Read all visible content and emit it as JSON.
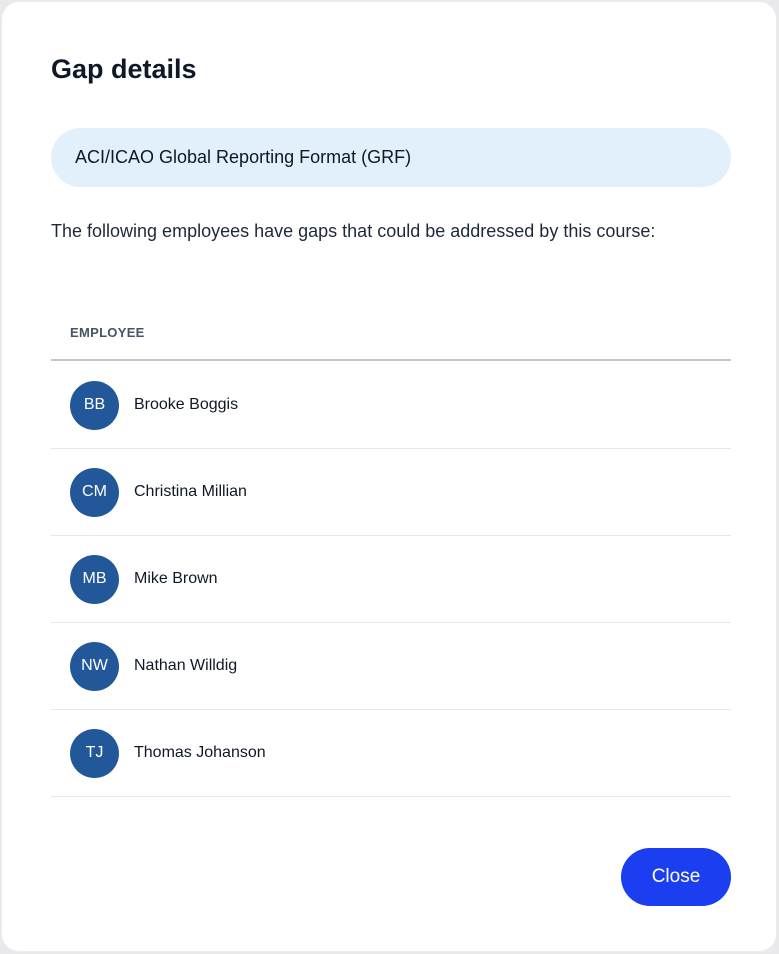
{
  "dialog": {
    "title": "Gap details",
    "course_name": "ACI/ICAO Global Reporting Format (GRF)",
    "description": "The following employees have gaps that could be addressed by this course:",
    "table": {
      "column_header": "EMPLOYEE",
      "rows": [
        {
          "initials": "BB",
          "name": "Brooke Boggis"
        },
        {
          "initials": "CM",
          "name": "Christina Millian"
        },
        {
          "initials": "MB",
          "name": "Mike Brown"
        },
        {
          "initials": "NW",
          "name": "Nathan Willdig"
        },
        {
          "initials": "TJ",
          "name": "Thomas Johanson"
        }
      ]
    },
    "close_label": "Close"
  },
  "colors": {
    "accent": "#1b3ef0",
    "avatar": "#22589a",
    "course_bg": "#e2f0fc"
  }
}
